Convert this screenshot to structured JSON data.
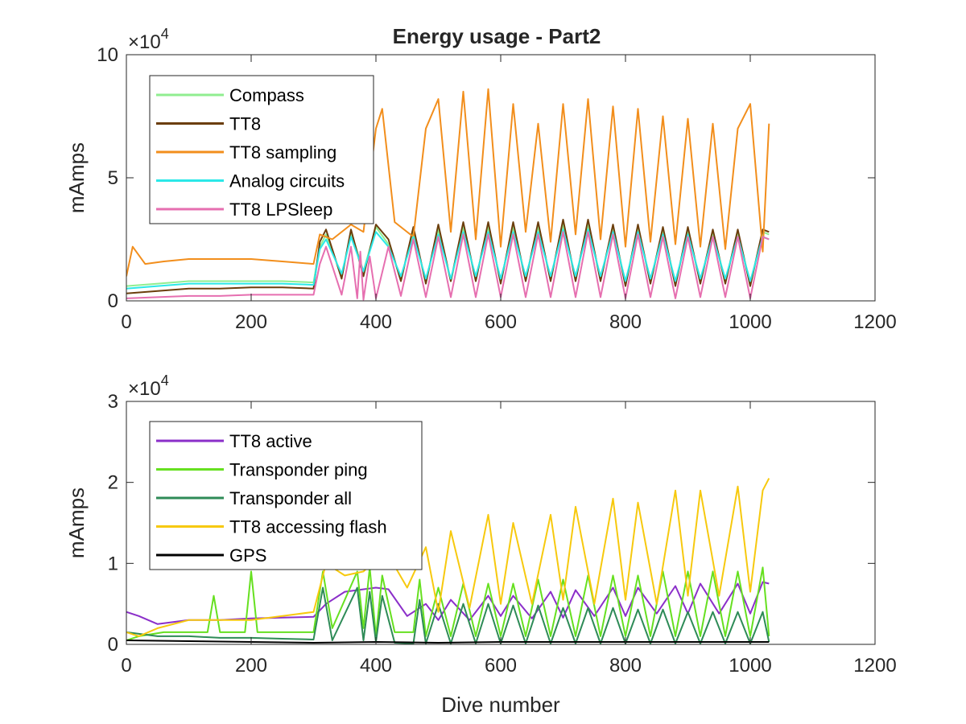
{
  "figure": {
    "background": "#ffffff"
  },
  "chart_data": [
    {
      "type": "line",
      "title": "Energy usage - Part2",
      "xlabel": "",
      "ylabel": "mAmps",
      "xlim": [
        0,
        1200
      ],
      "ylim": [
        0,
        100000
      ],
      "xticks": [
        "0",
        "200",
        "400",
        "600",
        "800",
        "1000",
        "1200"
      ],
      "yticks": [
        "0",
        "5",
        "10"
      ],
      "ytick_values": [
        0,
        50000,
        100000
      ],
      "exponent_label": "×10",
      "exponent_power": "4",
      "grid": false,
      "legend_position": "top-left",
      "series": [
        {
          "name": "Compass",
          "color": "#90ee90",
          "x": [
            0,
            50,
            100,
            150,
            200,
            250,
            300,
            310,
            320,
            345,
            360,
            380,
            400,
            420,
            440,
            460,
            480,
            500,
            520,
            540,
            560,
            580,
            600,
            620,
            640,
            660,
            680,
            700,
            720,
            740,
            760,
            780,
            800,
            820,
            840,
            860,
            880,
            900,
            920,
            940,
            960,
            980,
            1000,
            1020,
            1030
          ],
          "y": [
            6000,
            7000,
            8000,
            8000,
            8000,
            8000,
            7500,
            22000,
            27000,
            10000,
            28000,
            12000,
            30000,
            23000,
            9000,
            28000,
            8000,
            29000,
            8000,
            30000,
            9000,
            30000,
            8000,
            30000,
            9000,
            30000,
            9000,
            31000,
            9000,
            31000,
            9000,
            30000,
            7000,
            30000,
            8000,
            29000,
            7000,
            28000,
            8000,
            28000,
            8000,
            28000,
            7000,
            28000,
            27000
          ]
        },
        {
          "name": "TT8",
          "color": "#6b3e0c",
          "x": [
            0,
            50,
            100,
            150,
            200,
            250,
            300,
            310,
            320,
            345,
            360,
            380,
            400,
            420,
            440,
            460,
            480,
            500,
            520,
            540,
            560,
            580,
            600,
            620,
            640,
            660,
            680,
            700,
            720,
            740,
            760,
            780,
            800,
            820,
            840,
            860,
            880,
            900,
            920,
            940,
            960,
            980,
            1000,
            1020,
            1030
          ],
          "y": [
            3000,
            4000,
            5000,
            5000,
            5500,
            5500,
            5000,
            24000,
            29000,
            9000,
            29000,
            10000,
            31000,
            25000,
            8000,
            30000,
            7000,
            31000,
            8000,
            32000,
            8000,
            32000,
            7000,
            32000,
            8000,
            32000,
            8000,
            33000,
            8000,
            33000,
            8000,
            31000,
            6000,
            31000,
            7000,
            30000,
            6000,
            30000,
            7000,
            29000,
            7000,
            29000,
            6000,
            29000,
            28000
          ]
        },
        {
          "name": "TT8 sampling",
          "color": "#f28e1c",
          "x": [
            0,
            10,
            30,
            60,
            100,
            150,
            200,
            250,
            300,
            310,
            330,
            360,
            380,
            400,
            410,
            430,
            460,
            480,
            500,
            520,
            540,
            560,
            580,
            600,
            620,
            640,
            660,
            680,
            700,
            720,
            740,
            760,
            780,
            800,
            820,
            840,
            860,
            880,
            900,
            920,
            940,
            960,
            980,
            1000,
            1020,
            1030
          ],
          "y": [
            10000,
            22000,
            15000,
            16000,
            17000,
            17000,
            17000,
            16000,
            15000,
            27000,
            25000,
            31000,
            28000,
            70000,
            78000,
            32000,
            26000,
            70000,
            82000,
            28000,
            85000,
            25000,
            86000,
            22000,
            80000,
            28000,
            72000,
            24000,
            80000,
            27000,
            82000,
            25000,
            79000,
            22000,
            78000,
            24000,
            75000,
            23000,
            74000,
            22000,
            72000,
            21000,
            70000,
            80000,
            20000,
            72000
          ]
        },
        {
          "name": "Analog circuits",
          "color": "#2be8e8",
          "x": [
            0,
            50,
            100,
            150,
            200,
            250,
            300,
            310,
            320,
            345,
            360,
            380,
            400,
            420,
            440,
            460,
            480,
            500,
            520,
            540,
            560,
            580,
            600,
            620,
            640,
            660,
            680,
            700,
            720,
            740,
            760,
            780,
            800,
            820,
            840,
            860,
            880,
            900,
            920,
            940,
            960,
            980,
            1000,
            1020,
            1030
          ],
          "y": [
            5000,
            6000,
            7000,
            7000,
            7000,
            7000,
            6500,
            21000,
            25000,
            11000,
            26000,
            12000,
            28000,
            22000,
            10000,
            26000,
            9000,
            27000,
            9000,
            28000,
            10000,
            28000,
            9000,
            28000,
            10000,
            28000,
            10000,
            29000,
            10000,
            29000,
            10000,
            28000,
            8000,
            28000,
            9000,
            27000,
            8000,
            27000,
            9000,
            26000,
            9000,
            26000,
            8000,
            26000,
            25000
          ]
        },
        {
          "name": "TT8 LPSleep",
          "color": "#e66fb0",
          "x": [
            0,
            50,
            100,
            150,
            200,
            250,
            300,
            310,
            320,
            345,
            360,
            370,
            375,
            380,
            390,
            400,
            420,
            440,
            460,
            480,
            500,
            520,
            540,
            560,
            580,
            600,
            620,
            640,
            660,
            680,
            700,
            720,
            740,
            760,
            780,
            800,
            820,
            840,
            860,
            880,
            900,
            920,
            940,
            960,
            980,
            1000,
            1020,
            1030
          ],
          "y": [
            1000,
            1500,
            2000,
            2000,
            2500,
            2500,
            2500,
            15000,
            22000,
            2500,
            22000,
            1000,
            20000,
            500,
            18000,
            1000,
            22000,
            2000,
            25000,
            1500,
            26000,
            1500,
            27000,
            1500,
            27000,
            1500,
            27000,
            1500,
            27000,
            1500,
            28000,
            1500,
            28000,
            1500,
            27000,
            1000,
            27000,
            1500,
            26000,
            1000,
            26000,
            1500,
            26000,
            1500,
            26000,
            1000,
            26000,
            25000
          ]
        }
      ]
    },
    {
      "type": "line",
      "title": "",
      "xlabel": "Dive number",
      "ylabel": "mAmps",
      "xlim": [
        0,
        1200
      ],
      "ylim": [
        0,
        30000
      ],
      "xticks": [
        "0",
        "200",
        "400",
        "600",
        "800",
        "1000",
        "1200"
      ],
      "yticks": [
        "0",
        "1",
        "2",
        "3"
      ],
      "ytick_values": [
        0,
        10000,
        20000,
        30000
      ],
      "exponent_label": "×10",
      "exponent_power": "4",
      "grid": false,
      "legend_position": "top-left",
      "series": [
        {
          "name": "TT8 active",
          "color": "#8b2fc9",
          "x": [
            0,
            20,
            50,
            100,
            150,
            200,
            250,
            300,
            320,
            350,
            400,
            420,
            450,
            480,
            500,
            520,
            550,
            580,
            600,
            620,
            650,
            680,
            700,
            720,
            750,
            780,
            800,
            820,
            850,
            880,
            900,
            920,
            950,
            980,
            1000,
            1020,
            1030
          ],
          "y": [
            4000,
            3500,
            2500,
            3000,
            3000,
            3200,
            3300,
            3400,
            5000,
            6500,
            7000,
            6800,
            3500,
            5000,
            3000,
            5500,
            3000,
            6000,
            3500,
            6000,
            3200,
            6500,
            3300,
            6700,
            3500,
            7000,
            3500,
            7000,
            3800,
            7200,
            3800,
            7500,
            3800,
            7500,
            3800,
            7700,
            7500
          ]
        },
        {
          "name": "Transponder ping",
          "color": "#66e020",
          "x": [
            0,
            20,
            60,
            100,
            130,
            140,
            150,
            190,
            200,
            210,
            250,
            300,
            315,
            330,
            370,
            380,
            390,
            400,
            410,
            430,
            460,
            470,
            480,
            500,
            520,
            540,
            560,
            580,
            600,
            620,
            640,
            660,
            680,
            700,
            720,
            740,
            760,
            780,
            800,
            820,
            840,
            860,
            880,
            900,
            920,
            940,
            960,
            980,
            1000,
            1020,
            1030
          ],
          "y": [
            500,
            1000,
            1500,
            1500,
            1500,
            6000,
            1500,
            1500,
            9000,
            1500,
            1500,
            1500,
            9000,
            2000,
            9000,
            2000,
            9500,
            1000,
            8500,
            1500,
            1500,
            8000,
            1000,
            7000,
            1000,
            7500,
            1000,
            7500,
            1000,
            7500,
            1000,
            8000,
            1000,
            8000,
            1000,
            8500,
            1000,
            8500,
            1000,
            8500,
            1000,
            9000,
            1000,
            9000,
            1000,
            9000,
            1000,
            9000,
            1000,
            9500,
            1000
          ]
        },
        {
          "name": "Transponder all",
          "color": "#2e8b57",
          "x": [
            0,
            50,
            100,
            150,
            200,
            250,
            300,
            315,
            330,
            370,
            380,
            390,
            400,
            410,
            430,
            460,
            470,
            480,
            500,
            520,
            540,
            560,
            580,
            600,
            620,
            640,
            660,
            680,
            700,
            720,
            740,
            760,
            780,
            800,
            820,
            840,
            860,
            880,
            900,
            920,
            940,
            960,
            980,
            1000,
            1020,
            1030
          ],
          "y": [
            1500,
            1000,
            1000,
            800,
            800,
            700,
            600,
            7000,
            500,
            7000,
            500,
            6500,
            300,
            6000,
            200,
            100,
            5500,
            100,
            5000,
            100,
            5000,
            100,
            5000,
            100,
            4800,
            100,
            4800,
            100,
            4500,
            100,
            4500,
            100,
            4500,
            100,
            4300,
            100,
            4300,
            100,
            4000,
            100,
            4000,
            100,
            4000,
            100,
            4000,
            300
          ]
        },
        {
          "name": "TT8 accessing flash",
          "color": "#f7c90e",
          "x": [
            0,
            20,
            50,
            100,
            150,
            200,
            250,
            300,
            320,
            350,
            380,
            400,
            420,
            450,
            480,
            500,
            520,
            550,
            580,
            600,
            620,
            650,
            680,
            700,
            720,
            750,
            780,
            800,
            820,
            850,
            880,
            900,
            920,
            950,
            980,
            1000,
            1020,
            1030
          ],
          "y": [
            1500,
            1000,
            2000,
            3000,
            3000,
            3000,
            3500,
            4000,
            10000,
            8500,
            9000,
            10500,
            11000,
            7000,
            12000,
            4000,
            14000,
            4500,
            16000,
            5000,
            15000,
            5000,
            16000,
            5500,
            17000,
            5000,
            18000,
            5500,
            17500,
            5000,
            19000,
            6000,
            19000,
            6000,
            19500,
            6500,
            19000,
            20500
          ]
        },
        {
          "name": "GPS",
          "color": "#000000",
          "x": [
            0,
            100,
            200,
            300,
            400,
            500,
            600,
            700,
            800,
            900,
            1000,
            1030
          ],
          "y": [
            500,
            400,
            300,
            200,
            300,
            200,
            300,
            300,
            300,
            300,
            300,
            300
          ]
        }
      ]
    }
  ]
}
